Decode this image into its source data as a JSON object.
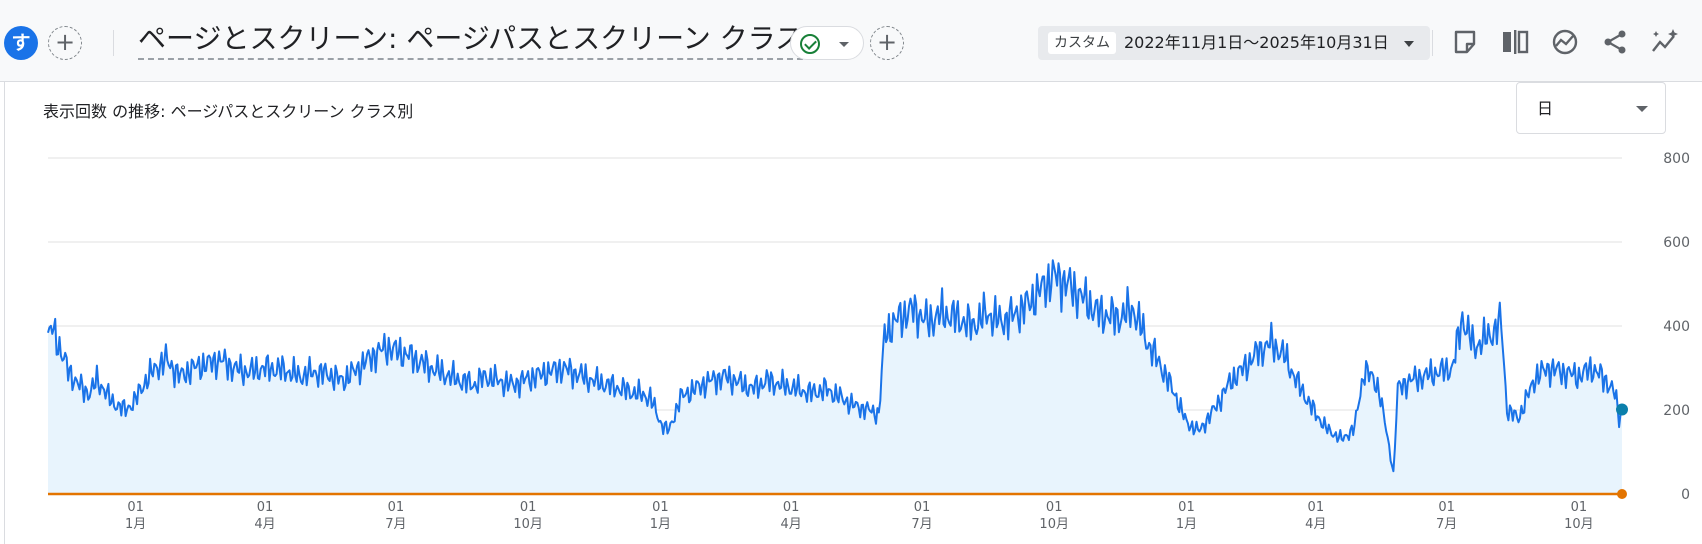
{
  "header": {
    "avatar_letter": "す",
    "add_comparison_label": "+",
    "report_title": "ページとスクリーン: ページパスとスクリーン クラス",
    "add_filter_label": "+",
    "date_preset": "カスタム",
    "date_range": "2022年11月1日～2025年10月31日",
    "tools": [
      "note-icon",
      "compare-columns-icon",
      "insights-icon",
      "share-icon",
      "sparkle-trend-icon"
    ]
  },
  "card": {
    "title": "表示回数 の推移: ページパスとスクリーン クラス別",
    "granularity": "日"
  },
  "colors": {
    "series": "#1a73e8",
    "area": "#e8f4fd",
    "baseline": "#e37400",
    "grid": "#e0e0e0"
  },
  "chart_data": {
    "type": "area",
    "x_start": "2022-11-01",
    "x_end": "2025-10-31",
    "ylim": [
      0,
      800
    ],
    "yticks": [
      0,
      200,
      400,
      600,
      800
    ],
    "grid": true,
    "x_ticks": [
      {
        "date": "2023-01-01",
        "day": "01",
        "month": "1月"
      },
      {
        "date": "2023-04-01",
        "day": "01",
        "month": "4月"
      },
      {
        "date": "2023-07-01",
        "day": "01",
        "month": "7月"
      },
      {
        "date": "2023-10-01",
        "day": "01",
        "month": "10月"
      },
      {
        "date": "2024-01-01",
        "day": "01",
        "month": "1月"
      },
      {
        "date": "2024-04-01",
        "day": "01",
        "month": "4月"
      },
      {
        "date": "2024-07-01",
        "day": "01",
        "month": "7月"
      },
      {
        "date": "2024-10-01",
        "day": "01",
        "month": "10月"
      },
      {
        "date": "2025-01-01",
        "day": "01",
        "month": "1月"
      },
      {
        "date": "2025-04-01",
        "day": "01",
        "month": "4月"
      },
      {
        "date": "2025-07-01",
        "day": "01",
        "month": "7月"
      },
      {
        "date": "2025-10-01",
        "day": "01",
        "month": "10月"
      }
    ],
    "series": [
      {
        "values": [
          [
            "2022-11-01",
            370
          ],
          [
            "2022-11-04",
            395
          ],
          [
            "2022-11-08",
            360
          ],
          [
            "2022-11-12",
            320
          ],
          [
            "2022-11-16",
            290
          ],
          [
            "2022-11-20",
            270
          ],
          [
            "2022-11-25",
            250
          ],
          [
            "2022-11-30",
            240
          ],
          [
            "2022-12-05",
            270
          ],
          [
            "2022-12-10",
            250
          ],
          [
            "2022-12-15",
            220
          ],
          [
            "2022-12-20",
            210
          ],
          [
            "2022-12-25",
            200
          ],
          [
            "2022-12-31",
            220
          ],
          [
            "2023-01-08",
            270
          ],
          [
            "2023-01-15",
            300
          ],
          [
            "2023-01-22",
            320
          ],
          [
            "2023-02-01",
            280
          ],
          [
            "2023-02-10",
            300
          ],
          [
            "2023-02-20",
            310
          ],
          [
            "2023-03-01",
            320
          ],
          [
            "2023-03-10",
            300
          ],
          [
            "2023-03-20",
            290
          ],
          [
            "2023-04-01",
            300
          ],
          [
            "2023-04-15",
            295
          ],
          [
            "2023-04-25",
            280
          ],
          [
            "2023-05-05",
            290
          ],
          [
            "2023-05-15",
            285
          ],
          [
            "2023-05-25",
            270
          ],
          [
            "2023-06-05",
            300
          ],
          [
            "2023-06-15",
            330
          ],
          [
            "2023-06-25",
            350
          ],
          [
            "2023-07-01",
            340
          ],
          [
            "2023-07-10",
            330
          ],
          [
            "2023-07-20",
            310
          ],
          [
            "2023-08-01",
            290
          ],
          [
            "2023-08-15",
            270
          ],
          [
            "2023-08-25",
            260
          ],
          [
            "2023-09-01",
            280
          ],
          [
            "2023-09-10",
            270
          ],
          [
            "2023-09-20",
            260
          ],
          [
            "2023-10-01",
            275
          ],
          [
            "2023-10-15",
            290
          ],
          [
            "2023-10-25",
            300
          ],
          [
            "2023-11-05",
            285
          ],
          [
            "2023-11-15",
            270
          ],
          [
            "2023-11-25",
            260
          ],
          [
            "2023-12-05",
            250
          ],
          [
            "2023-12-15",
            240
          ],
          [
            "2023-12-25",
            230
          ],
          [
            "2024-01-01",
            170
          ],
          [
            "2024-01-07",
            150
          ],
          [
            "2024-01-15",
            230
          ],
          [
            "2024-01-25",
            250
          ],
          [
            "2024-02-05",
            270
          ],
          [
            "2024-02-15",
            280
          ],
          [
            "2024-02-25",
            265
          ],
          [
            "2024-03-05",
            250
          ],
          [
            "2024-03-15",
            270
          ],
          [
            "2024-03-25",
            260
          ],
          [
            "2024-04-05",
            250
          ],
          [
            "2024-04-15",
            240
          ],
          [
            "2024-04-25",
            250
          ],
          [
            "2024-05-05",
            230
          ],
          [
            "2024-05-15",
            210
          ],
          [
            "2024-05-25",
            200
          ],
          [
            "2024-06-01",
            190
          ],
          [
            "2024-06-05",
            380
          ],
          [
            "2024-06-15",
            420
          ],
          [
            "2024-06-25",
            440
          ],
          [
            "2024-07-05",
            410
          ],
          [
            "2024-07-15",
            430
          ],
          [
            "2024-07-25",
            420
          ],
          [
            "2024-08-05",
            400
          ],
          [
            "2024-08-15",
            430
          ],
          [
            "2024-08-25",
            410
          ],
          [
            "2024-09-05",
            430
          ],
          [
            "2024-09-15",
            460
          ],
          [
            "2024-09-25",
            500
          ],
          [
            "2024-10-01",
            520
          ],
          [
            "2024-10-10",
            500
          ],
          [
            "2024-10-20",
            470
          ],
          [
            "2024-11-01",
            430
          ],
          [
            "2024-11-15",
            420
          ],
          [
            "2024-11-25",
            440
          ],
          [
            "2024-12-05",
            360
          ],
          [
            "2024-12-15",
            300
          ],
          [
            "2024-12-25",
            230
          ],
          [
            "2025-01-01",
            170
          ],
          [
            "2025-01-10",
            150
          ],
          [
            "2025-01-20",
            200
          ],
          [
            "2025-02-01",
            270
          ],
          [
            "2025-02-10",
            300
          ],
          [
            "2025-02-20",
            340
          ],
          [
            "2025-03-01",
            360
          ],
          [
            "2025-03-10",
            330
          ],
          [
            "2025-03-20",
            260
          ],
          [
            "2025-04-01",
            190
          ],
          [
            "2025-04-10",
            150
          ],
          [
            "2025-04-20",
            130
          ],
          [
            "2025-04-28",
            160
          ],
          [
            "2025-05-05",
            300
          ],
          [
            "2025-05-15",
            250
          ],
          [
            "2025-05-25",
            50
          ],
          [
            "2025-05-28",
            250
          ],
          [
            "2025-06-05",
            270
          ],
          [
            "2025-06-15",
            280
          ],
          [
            "2025-06-25",
            290
          ],
          [
            "2025-07-05",
            300
          ],
          [
            "2025-07-12",
            420
          ],
          [
            "2025-07-20",
            350
          ],
          [
            "2025-08-01",
            380
          ],
          [
            "2025-08-08",
            410
          ],
          [
            "2025-08-12",
            200
          ],
          [
            "2025-08-20",
            180
          ],
          [
            "2025-09-01",
            280
          ],
          [
            "2025-09-10",
            300
          ],
          [
            "2025-09-20",
            290
          ],
          [
            "2025-10-01",
            280
          ],
          [
            "2025-10-10",
            300
          ],
          [
            "2025-10-20",
            270
          ],
          [
            "2025-10-26",
            240
          ],
          [
            "2025-10-29",
            180
          ],
          [
            "2025-10-31",
            200
          ]
        ]
      },
      {
        "values": [
          [
            "2022-11-01",
            0
          ],
          [
            "2025-10-31",
            0
          ]
        ]
      }
    ]
  }
}
